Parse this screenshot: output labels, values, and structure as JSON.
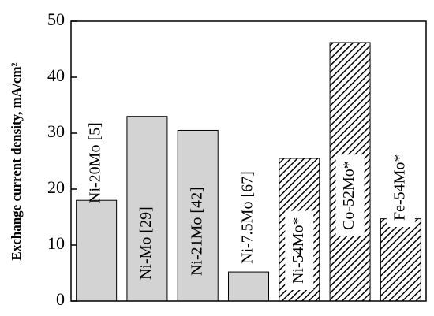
{
  "chart_data": {
    "type": "bar",
    "y_label": "Exchange current density, mA/cm²",
    "categories": [
      "Ni-20Mo [5]",
      "Ni-Mo [29]",
      "Ni-21Mo [42]",
      "Ni-7.5Mo [67]",
      "Ni-54Mo*",
      "Co-52Mo*",
      "Fe-54Mo*"
    ],
    "values": [
      18,
      33,
      30.5,
      5.2,
      25.5,
      46.2,
      14.7
    ],
    "fills": [
      "#d3d3d3",
      "#d3d3d3",
      "#d3d3d3",
      "#d3d3d3",
      "hatch",
      "hatch",
      "hatch"
    ],
    "ylim": [
      0,
      50
    ],
    "yticks": [
      0,
      10,
      20,
      30,
      40,
      50
    ]
  }
}
